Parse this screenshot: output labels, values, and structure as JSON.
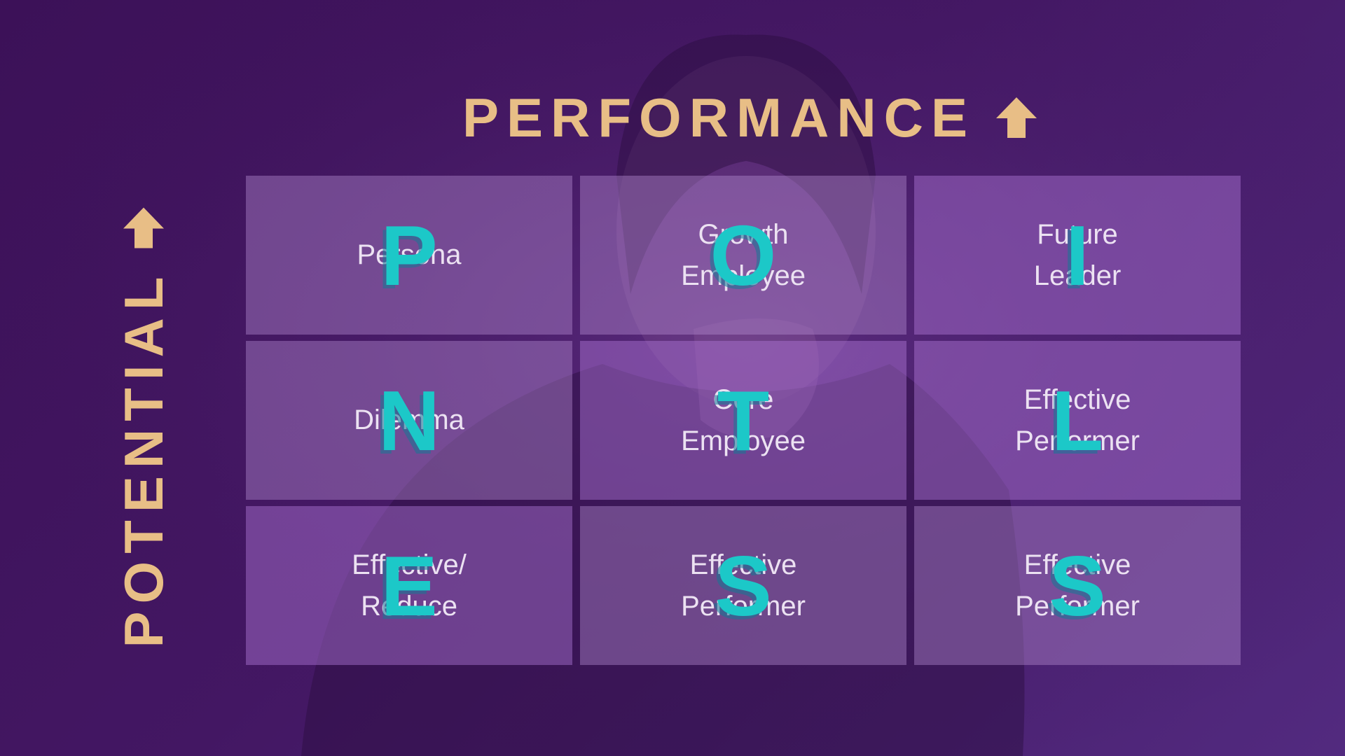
{
  "header": {
    "title": "PERFORMANCE",
    "arrow_icon": "arrow-up-icon"
  },
  "side": {
    "label": "POTENTIAL",
    "arrow_icon": "arrow-up-icon"
  },
  "colors": {
    "accent_gold": "#e8be86",
    "letter_teal": "#1cc8c8",
    "background": "#431763"
  },
  "grid": {
    "cells": [
      {
        "text": "Persona",
        "letter": "P"
      },
      {
        "text": "Growth\nEmployee",
        "letter": "O"
      },
      {
        "text": "Future\nLeader",
        "letter": "I"
      },
      {
        "text": "Dilemma",
        "letter": "N"
      },
      {
        "text": "Core\nEmployee",
        "letter": "T"
      },
      {
        "text": "Effective\nPerformer",
        "letter": "L"
      },
      {
        "text": "Effective/\nReduce",
        "letter": "E"
      },
      {
        "text": "Effective\nPerformer",
        "letter": "S"
      },
      {
        "text": "Effective\nPerformer",
        "letter": "S"
      }
    ]
  }
}
